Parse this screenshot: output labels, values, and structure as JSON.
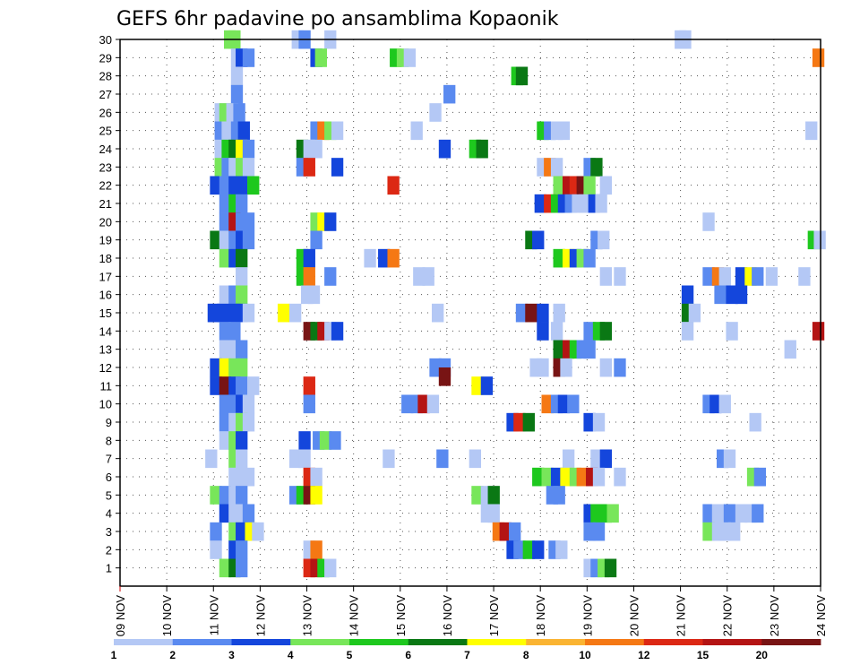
{
  "chart_data": {
    "type": "heatmap",
    "title": "GEFS 6hr padavine po ansamblima Kopaonik",
    "xlabel": "",
    "ylabel": "",
    "x_ticks": [
      "09 NOV",
      "10 NOV",
      "11 NOV",
      "12 NOV",
      "13 NOV",
      "14 NOV",
      "15 NOV",
      "16 NOV",
      "17 NOV",
      "18 NOV",
      "19 NOV",
      "20 NOV",
      "21 NOV",
      "22 NOV",
      "23 NOV",
      "24 NOV"
    ],
    "y_ticks": [
      "1",
      "2",
      "3",
      "4",
      "5",
      "6",
      "7",
      "8",
      "9",
      "10",
      "11",
      "12",
      "13",
      "14",
      "15",
      "16",
      "17",
      "18",
      "19",
      "20",
      "21",
      "22",
      "23",
      "24",
      "25",
      "26",
      "27",
      "28",
      "29",
      "30"
    ],
    "xlim_days": [
      0,
      15
    ],
    "ylim": [
      0,
      30
    ],
    "grid": true,
    "legend": {
      "placement": "bottom",
      "labels": [
        "1",
        "2",
        "3",
        "4",
        "5",
        "6",
        "7",
        "8",
        "10",
        "12",
        "15",
        "20"
      ],
      "colors": [
        "#b4c8f5",
        "#5a8af0",
        "#1446dc",
        "#78e65a",
        "#1ec81e",
        "#0a7814",
        "#ffff00",
        "#fab432",
        "#f57814",
        "#dc2814",
        "#b41414",
        "#781414"
      ]
    },
    "cells": [
      [
        2.35,
        30,
        4
      ],
      [
        2.45,
        30,
        4
      ],
      [
        3.8,
        30,
        1
      ],
      [
        4.5,
        30,
        1
      ],
      [
        12.0,
        30,
        1
      ],
      [
        12.1,
        30,
        1
      ],
      [
        3.95,
        30,
        2
      ],
      [
        2.5,
        29,
        1
      ],
      [
        2.6,
        29,
        3
      ],
      [
        2.75,
        29,
        2
      ],
      [
        4.2,
        29,
        3
      ],
      [
        4.3,
        29,
        4
      ],
      [
        5.9,
        29,
        5
      ],
      [
        6.05,
        29,
        4
      ],
      [
        6.2,
        29,
        1
      ],
      [
        14.95,
        29,
        9
      ],
      [
        2.5,
        28,
        1
      ],
      [
        8.5,
        28,
        5
      ],
      [
        8.6,
        28,
        6
      ],
      [
        2.5,
        27,
        2
      ],
      [
        7.05,
        27,
        2
      ],
      [
        2.15,
        26,
        1
      ],
      [
        2.25,
        26,
        4
      ],
      [
        2.4,
        26,
        1
      ],
      [
        2.55,
        26,
        2
      ],
      [
        6.75,
        26,
        1
      ],
      [
        2.15,
        25,
        2
      ],
      [
        2.3,
        25,
        1
      ],
      [
        2.5,
        25,
        2
      ],
      [
        2.65,
        25,
        3
      ],
      [
        4.2,
        25,
        2
      ],
      [
        4.35,
        25,
        9
      ],
      [
        4.5,
        25,
        4
      ],
      [
        4.65,
        25,
        1
      ],
      [
        6.35,
        25,
        1
      ],
      [
        9.05,
        25,
        5
      ],
      [
        9.2,
        25,
        2
      ],
      [
        9.35,
        25,
        1
      ],
      [
        9.5,
        25,
        1
      ],
      [
        14.8,
        25,
        1
      ],
      [
        2.15,
        24,
        1
      ],
      [
        2.3,
        24,
        5
      ],
      [
        2.45,
        24,
        6
      ],
      [
        2.6,
        24,
        7
      ],
      [
        2.75,
        24,
        2
      ],
      [
        3.9,
        24,
        6
      ],
      [
        4.05,
        24,
        1
      ],
      [
        4.2,
        24,
        1
      ],
      [
        6.95,
        24,
        3
      ],
      [
        7.6,
        24,
        5
      ],
      [
        7.75,
        24,
        6
      ],
      [
        2.15,
        23,
        4
      ],
      [
        2.3,
        23,
        2
      ],
      [
        2.45,
        23,
        1
      ],
      [
        2.6,
        23,
        4
      ],
      [
        2.75,
        23,
        1
      ],
      [
        3.9,
        23,
        2
      ],
      [
        4.05,
        23,
        10
      ],
      [
        4.65,
        23,
        3
      ],
      [
        9.05,
        23,
        1
      ],
      [
        9.2,
        23,
        9
      ],
      [
        9.35,
        23,
        1
      ],
      [
        10.05,
        23,
        2
      ],
      [
        10.2,
        23,
        6
      ],
      [
        2.05,
        22,
        3
      ],
      [
        2.25,
        22,
        2
      ],
      [
        2.45,
        22,
        3
      ],
      [
        2.6,
        22,
        3
      ],
      [
        2.85,
        22,
        5
      ],
      [
        5.85,
        22,
        10
      ],
      [
        9.4,
        22,
        4
      ],
      [
        9.6,
        22,
        11
      ],
      [
        9.75,
        22,
        10
      ],
      [
        9.9,
        22,
        12
      ],
      [
        10.05,
        22,
        4
      ],
      [
        10.4,
        22,
        1
      ],
      [
        2.25,
        21,
        2
      ],
      [
        2.45,
        21,
        5
      ],
      [
        2.6,
        21,
        2
      ],
      [
        9.0,
        21,
        3
      ],
      [
        9.2,
        21,
        10
      ],
      [
        9.35,
        21,
        5
      ],
      [
        9.5,
        21,
        3
      ],
      [
        9.65,
        21,
        2
      ],
      [
        9.8,
        21,
        1
      ],
      [
        9.95,
        21,
        1
      ],
      [
        10.15,
        21,
        3
      ],
      [
        10.3,
        21,
        1
      ],
      [
        2.25,
        20,
        2
      ],
      [
        2.45,
        20,
        11
      ],
      [
        2.6,
        20,
        2
      ],
      [
        2.75,
        20,
        2
      ],
      [
        4.2,
        20,
        4
      ],
      [
        4.35,
        20,
        7
      ],
      [
        4.5,
        20,
        3
      ],
      [
        12.6,
        20,
        1
      ],
      [
        2.05,
        19,
        6
      ],
      [
        2.25,
        19,
        1
      ],
      [
        2.45,
        19,
        2
      ],
      [
        2.6,
        19,
        3
      ],
      [
        2.75,
        19,
        2
      ],
      [
        4.2,
        19,
        2
      ],
      [
        8.8,
        19,
        6
      ],
      [
        8.95,
        19,
        3
      ],
      [
        10.2,
        19,
        2
      ],
      [
        10.35,
        19,
        1
      ],
      [
        14.85,
        19,
        5
      ],
      [
        14.98,
        19,
        1
      ],
      [
        2.25,
        18,
        4
      ],
      [
        2.45,
        18,
        3
      ],
      [
        2.6,
        18,
        6
      ],
      [
        3.9,
        18,
        5
      ],
      [
        4.05,
        18,
        3
      ],
      [
        5.35,
        18,
        1
      ],
      [
        5.65,
        18,
        3
      ],
      [
        5.85,
        18,
        9
      ],
      [
        9.4,
        18,
        5
      ],
      [
        9.6,
        18,
        7
      ],
      [
        9.75,
        18,
        3
      ],
      [
        9.9,
        18,
        4
      ],
      [
        10.05,
        18,
        2
      ],
      [
        2.6,
        17,
        1
      ],
      [
        3.9,
        17,
        5
      ],
      [
        4.05,
        17,
        9
      ],
      [
        4.5,
        17,
        2
      ],
      [
        6.4,
        17,
        1
      ],
      [
        6.6,
        17,
        1
      ],
      [
        10.4,
        17,
        1
      ],
      [
        10.7,
        17,
        1
      ],
      [
        12.6,
        17,
        2
      ],
      [
        12.8,
        17,
        9
      ],
      [
        12.95,
        17,
        1
      ],
      [
        13.3,
        17,
        3
      ],
      [
        13.5,
        17,
        7
      ],
      [
        13.65,
        17,
        2
      ],
      [
        13.95,
        17,
        1
      ],
      [
        14.65,
        17,
        1
      ],
      [
        2.25,
        16,
        1
      ],
      [
        2.45,
        16,
        2
      ],
      [
        2.6,
        16,
        4
      ],
      [
        4.0,
        16,
        1
      ],
      [
        4.15,
        16,
        1
      ],
      [
        12.15,
        16,
        3
      ],
      [
        12.85,
        16,
        2
      ],
      [
        13.1,
        16,
        3
      ],
      [
        13.3,
        16,
        3
      ],
      [
        2.0,
        15,
        3
      ],
      [
        2.2,
        15,
        3
      ],
      [
        2.45,
        15,
        3
      ],
      [
        2.6,
        15,
        3
      ],
      [
        2.75,
        15,
        1
      ],
      [
        3.5,
        15,
        7
      ],
      [
        3.75,
        15,
        1
      ],
      [
        6.8,
        15,
        1
      ],
      [
        8.6,
        15,
        2
      ],
      [
        8.8,
        15,
        12
      ],
      [
        9.05,
        15,
        3
      ],
      [
        9.4,
        15,
        1
      ],
      [
        12.15,
        15,
        6
      ],
      [
        12.3,
        15,
        1
      ],
      [
        2.25,
        14,
        2
      ],
      [
        2.45,
        14,
        2
      ],
      [
        4.05,
        14,
        12
      ],
      [
        4.2,
        14,
        6
      ],
      [
        4.35,
        14,
        11
      ],
      [
        4.5,
        14,
        1
      ],
      [
        4.65,
        14,
        3
      ],
      [
        9.05,
        14,
        3
      ],
      [
        9.35,
        14,
        1
      ],
      [
        10.05,
        14,
        2
      ],
      [
        10.25,
        14,
        5
      ],
      [
        10.4,
        14,
        6
      ],
      [
        12.15,
        14,
        1
      ],
      [
        13.1,
        14,
        1
      ],
      [
        14.95,
        14,
        11
      ],
      [
        2.25,
        13,
        1
      ],
      [
        2.45,
        13,
        1
      ],
      [
        2.6,
        13,
        2
      ],
      [
        9.4,
        13,
        6
      ],
      [
        9.6,
        13,
        11
      ],
      [
        9.75,
        13,
        5
      ],
      [
        9.9,
        13,
        2
      ],
      [
        10.05,
        13,
        2
      ],
      [
        14.35,
        13,
        1
      ],
      [
        2.05,
        12,
        3
      ],
      [
        2.25,
        12,
        7
      ],
      [
        2.45,
        12,
        4
      ],
      [
        2.6,
        12,
        4
      ],
      [
        6.75,
        12,
        2
      ],
      [
        6.95,
        12,
        2
      ],
      [
        6.95,
        11.5,
        12
      ],
      [
        8.9,
        12,
        1
      ],
      [
        9.05,
        12,
        1
      ],
      [
        9.4,
        12,
        12
      ],
      [
        9.55,
        12,
        1
      ],
      [
        10.4,
        12,
        1
      ],
      [
        10.7,
        12,
        2
      ],
      [
        2.05,
        11,
        3
      ],
      [
        2.25,
        11,
        12
      ],
      [
        2.45,
        11,
        3
      ],
      [
        2.6,
        11,
        2
      ],
      [
        2.85,
        11,
        1
      ],
      [
        4.05,
        11,
        10
      ],
      [
        7.65,
        11,
        7
      ],
      [
        7.85,
        11,
        3
      ],
      [
        2.25,
        10,
        2
      ],
      [
        2.45,
        10,
        2
      ],
      [
        2.6,
        10,
        3
      ],
      [
        2.75,
        10,
        1
      ],
      [
        4.05,
        10,
        2
      ],
      [
        6.15,
        10,
        2
      ],
      [
        6.35,
        10,
        2
      ],
      [
        6.5,
        10,
        11
      ],
      [
        6.7,
        10,
        1
      ],
      [
        9.15,
        10,
        9
      ],
      [
        9.35,
        10,
        2
      ],
      [
        9.5,
        10,
        3
      ],
      [
        9.7,
        10,
        2
      ],
      [
        12.6,
        10,
        2
      ],
      [
        12.75,
        10,
        3
      ],
      [
        12.95,
        10,
        1
      ],
      [
        2.25,
        9,
        2
      ],
      [
        2.45,
        9,
        1
      ],
      [
        2.6,
        9,
        4
      ],
      [
        2.75,
        9,
        1
      ],
      [
        8.4,
        9,
        3
      ],
      [
        8.55,
        9,
        10
      ],
      [
        8.75,
        9,
        6
      ],
      [
        10.05,
        9,
        3
      ],
      [
        10.25,
        9,
        1
      ],
      [
        13.6,
        9,
        1
      ],
      [
        2.25,
        8,
        1
      ],
      [
        2.45,
        8,
        4
      ],
      [
        2.6,
        8,
        3
      ],
      [
        3.95,
        8,
        3
      ],
      [
        4.25,
        8,
        2
      ],
      [
        4.4,
        8,
        4
      ],
      [
        4.6,
        8,
        2
      ],
      [
        1.95,
        7,
        1
      ],
      [
        2.45,
        7,
        4
      ],
      [
        2.6,
        7,
        1
      ],
      [
        3.75,
        7,
        1
      ],
      [
        3.95,
        7,
        1
      ],
      [
        5.75,
        7,
        1
      ],
      [
        6.9,
        7,
        2
      ],
      [
        7.6,
        7,
        1
      ],
      [
        9.6,
        7,
        1
      ],
      [
        10.2,
        7,
        1
      ],
      [
        10.4,
        7,
        3
      ],
      [
        12.9,
        7,
        2
      ],
      [
        13.05,
        7,
        1
      ],
      [
        2.45,
        6,
        1
      ],
      [
        2.6,
        6,
        1
      ],
      [
        2.75,
        6,
        1
      ],
      [
        4.05,
        6,
        10
      ],
      [
        4.2,
        6,
        1
      ],
      [
        8.95,
        6,
        5
      ],
      [
        9.15,
        6,
        4
      ],
      [
        9.35,
        6,
        3
      ],
      [
        9.55,
        6,
        7
      ],
      [
        9.75,
        6,
        4
      ],
      [
        9.9,
        6,
        9
      ],
      [
        10.1,
        6,
        11
      ],
      [
        10.25,
        6,
        1
      ],
      [
        10.7,
        6,
        1
      ],
      [
        13.55,
        6,
        4
      ],
      [
        13.7,
        6,
        2
      ],
      [
        2.05,
        5,
        4
      ],
      [
        2.25,
        5,
        2
      ],
      [
        2.45,
        5,
        1
      ],
      [
        2.6,
        5,
        2
      ],
      [
        3.75,
        5,
        2
      ],
      [
        3.9,
        5,
        5
      ],
      [
        4.05,
        5,
        12
      ],
      [
        4.2,
        5,
        7
      ],
      [
        7.65,
        5,
        4
      ],
      [
        7.85,
        5,
        1
      ],
      [
        8.0,
        5,
        6
      ],
      [
        9.25,
        5,
        2
      ],
      [
        9.4,
        5,
        2
      ],
      [
        2.25,
        4,
        3
      ],
      [
        2.45,
        4,
        1
      ],
      [
        2.6,
        4,
        1
      ],
      [
        2.75,
        4,
        2
      ],
      [
        7.85,
        4,
        1
      ],
      [
        8.0,
        4,
        1
      ],
      [
        10.05,
        4,
        3
      ],
      [
        10.2,
        4,
        5
      ],
      [
        10.4,
        4,
        5
      ],
      [
        10.55,
        4,
        4
      ],
      [
        12.6,
        4,
        2
      ],
      [
        12.8,
        4,
        1
      ],
      [
        13.05,
        4,
        2
      ],
      [
        13.3,
        4,
        1
      ],
      [
        13.5,
        4,
        1
      ],
      [
        13.65,
        4,
        2
      ],
      [
        2.05,
        3,
        2
      ],
      [
        2.45,
        3,
        4
      ],
      [
        2.6,
        3,
        3
      ],
      [
        2.8,
        3,
        7
      ],
      [
        2.95,
        3,
        1
      ],
      [
        8.1,
        3,
        9
      ],
      [
        8.25,
        3,
        11
      ],
      [
        8.45,
        3,
        2
      ],
      [
        10.05,
        3,
        2
      ],
      [
        10.25,
        3,
        2
      ],
      [
        12.6,
        3,
        4
      ],
      [
        12.8,
        3,
        1
      ],
      [
        12.95,
        3,
        1
      ],
      [
        13.15,
        3,
        1
      ],
      [
        2.05,
        2,
        1
      ],
      [
        2.45,
        2,
        3
      ],
      [
        2.6,
        2,
        2
      ],
      [
        4.05,
        2,
        1
      ],
      [
        4.2,
        2,
        9
      ],
      [
        8.4,
        2,
        3
      ],
      [
        8.55,
        2,
        2
      ],
      [
        8.75,
        2,
        5
      ],
      [
        8.95,
        2,
        3
      ],
      [
        9.3,
        2,
        2
      ],
      [
        9.45,
        2,
        1
      ],
      [
        2.25,
        1,
        4
      ],
      [
        2.45,
        1,
        6
      ],
      [
        2.6,
        1,
        2
      ],
      [
        4.05,
        1,
        10
      ],
      [
        4.2,
        1,
        11
      ],
      [
        4.35,
        1,
        5
      ],
      [
        4.5,
        1,
        1
      ],
      [
        10.05,
        1,
        1
      ],
      [
        10.2,
        1,
        2
      ],
      [
        10.35,
        1,
        4
      ],
      [
        10.5,
        1,
        6
      ]
    ]
  }
}
